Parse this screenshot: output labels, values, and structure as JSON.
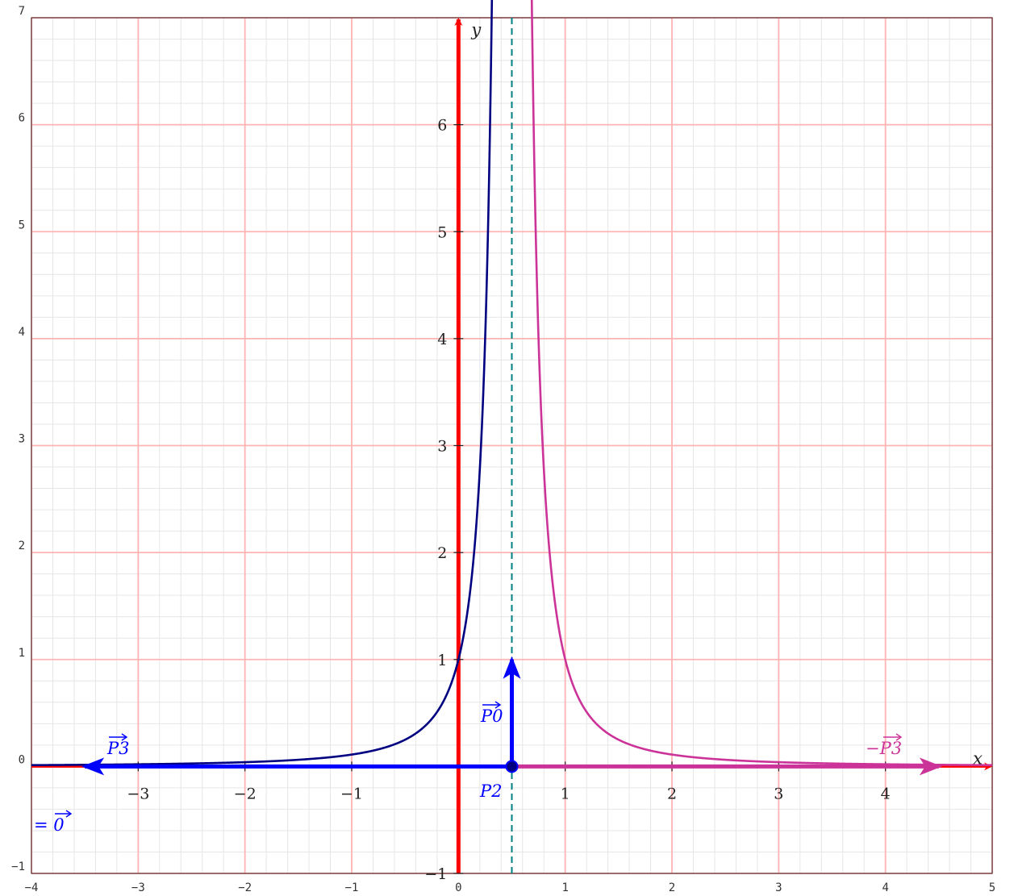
{
  "chart_data": {
    "type": "line",
    "title": "",
    "xlim": [
      -4,
      5
    ],
    "ylim": [
      -1,
      7
    ],
    "grid": true,
    "outer_x_ticks": [
      "−4",
      "−3",
      "−2",
      "−1",
      "0",
      "1",
      "2",
      "3",
      "4",
      "5"
    ],
    "outer_y_ticks": [
      "−1",
      "0",
      "1",
      "2",
      "3",
      "4",
      "5",
      "6",
      "7"
    ],
    "inner_x_ticks": [
      {
        "value": -3,
        "label": "−3"
      },
      {
        "value": -2,
        "label": "−2"
      },
      {
        "value": -1,
        "label": "−1"
      },
      {
        "value": 1,
        "label": "1"
      },
      {
        "value": 2,
        "label": "2"
      },
      {
        "value": 3,
        "label": "3"
      },
      {
        "value": 4,
        "label": "4"
      }
    ],
    "inner_y_ticks": [
      {
        "value": -1,
        "label": "−1"
      },
      {
        "value": 1,
        "label": "1"
      },
      {
        "value": 2,
        "label": "2"
      },
      {
        "value": 3,
        "label": "3"
      },
      {
        "value": 4,
        "label": "4"
      },
      {
        "value": 5,
        "label": "5"
      },
      {
        "value": 6,
        "label": "6"
      }
    ],
    "axis_labels": {
      "x": "x",
      "y": "y"
    },
    "asymptote_x": 0.5,
    "series": [
      {
        "color": "#000080",
        "formula": "1/(1-2x)^2",
        "domain": [
          -4,
          0.5
        ]
      },
      {
        "color": "#cc3399",
        "formula": "1/(1-2x)^2",
        "domain": [
          0.5,
          5
        ]
      }
    ],
    "vectors": [
      {
        "from": [
          0.5,
          0
        ],
        "to": [
          -3.5,
          0
        ],
        "color": "#0000ff",
        "label": "P3"
      },
      {
        "from": [
          0.5,
          0
        ],
        "to": [
          0.5,
          1
        ],
        "color": "#0000ff",
        "label": "P0"
      },
      {
        "from": [
          0.5,
          0
        ],
        "to": [
          4.5,
          0
        ],
        "color": "#cc3399",
        "label": "−P3"
      }
    ],
    "point": {
      "x": 0.5,
      "y": 0,
      "label": "P2"
    },
    "annotations": {
      "p3": "P3",
      "p0": "P0",
      "neg_p3": "−P3",
      "p2": "P2",
      "equals_zero": "= 0"
    },
    "colors": {
      "major_grid": "#ffb3b3",
      "minor_grid": "#e6e6e6",
      "axis": "#ff0000",
      "asymptote": "#008080",
      "vector": "#0000ff",
      "left_curve": "#000080",
      "right_curve": "#cc3399"
    }
  }
}
